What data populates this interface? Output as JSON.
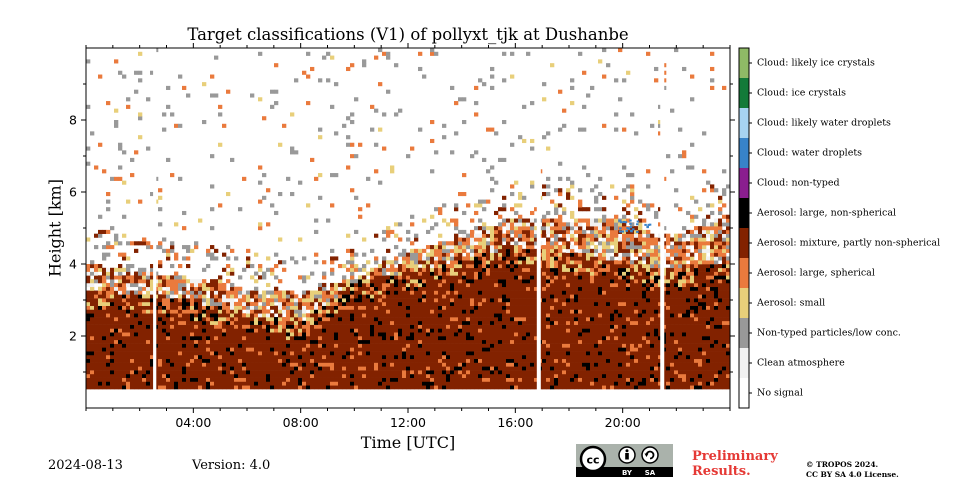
{
  "footer": {
    "date": "2024-08-13",
    "version": "Version: 4.0",
    "preliminary_line1": "Preliminary",
    "preliminary_line2": "Results.",
    "copyright_line1": "© TROPOS 2024.",
    "copyright_line2": "CC BY SA 4.0 License.",
    "license_badge": {
      "cc": "cc",
      "by": "BY",
      "sa": "SA"
    }
  },
  "colors": {
    "no_signal": "#ffffff",
    "clean_atmosphere": "#f2f2f2",
    "non_typed_low_conc": "#999999",
    "aerosol_small": "#e8cf7a",
    "aerosol_large_spherical": "#ea7a3d",
    "aerosol_mixture": "#822200",
    "aerosol_large_nonspherical": "#000000",
    "cloud_non_typed": "#8a1e8f",
    "cloud_water_droplets": "#3883c9",
    "cloud_likely_water_droplets": "#a7d3f2",
    "cloud_ice_crystals": "#137a39",
    "cloud_likely_ice_crystals": "#8fba66",
    "accent_red": "#e53935"
  },
  "chart_data": {
    "type": "heatmap",
    "title": "Target classifications (V1) of pollyxt_tjk at Dushanbe",
    "xlabel": "Time [UTC]",
    "ylabel": "Height [km]",
    "xlim_hours": [
      0,
      24
    ],
    "ylim_km": [
      0,
      10
    ],
    "x_ticks": [
      {
        "hour": 4,
        "label": "04:00"
      },
      {
        "hour": 8,
        "label": "08:00"
      },
      {
        "hour": 12,
        "label": "12:00"
      },
      {
        "hour": 16,
        "label": "16:00"
      },
      {
        "hour": 20,
        "label": "20:00"
      }
    ],
    "y_ticks": [
      {
        "km": 2,
        "label": "2"
      },
      {
        "km": 4,
        "label": "4"
      },
      {
        "km": 6,
        "label": "6"
      },
      {
        "km": 8,
        "label": "8"
      }
    ],
    "lowest_height_km": 0.5,
    "data_gaps_hours": [
      [
        2.5,
        2.62
      ],
      [
        16.8,
        16.95
      ],
      [
        21.4,
        21.55
      ]
    ],
    "mixture_layer_top_km": [
      [
        0,
        2.9
      ],
      [
        2,
        2.9
      ],
      [
        3,
        2.8
      ],
      [
        5,
        2.5
      ],
      [
        7,
        2.2
      ],
      [
        8,
        2.1
      ],
      [
        9,
        2.6
      ],
      [
        10,
        3.2
      ],
      [
        12,
        3.5
      ],
      [
        14,
        3.8
      ],
      [
        16,
        4.2
      ],
      [
        18,
        4.0
      ],
      [
        20,
        3.8
      ],
      [
        22,
        3.5
      ],
      [
        24,
        3.8
      ]
    ],
    "aerosol_layer_top_km": [
      [
        0,
        4.0
      ],
      [
        2,
        3.8
      ],
      [
        4,
        3.6
      ],
      [
        6,
        3.3
      ],
      [
        8,
        3.2
      ],
      [
        10,
        3.6
      ],
      [
        12,
        4.3
      ],
      [
        14,
        4.8
      ],
      [
        16,
        5.3
      ],
      [
        18,
        5.2
      ],
      [
        20,
        5.3
      ],
      [
        21,
        4.9
      ],
      [
        22,
        4.8
      ],
      [
        24,
        5.4
      ]
    ],
    "legend": [
      {
        "label": "Cloud: likely ice crystals",
        "color_key": "cloud_likely_ice_crystals"
      },
      {
        "label": "Cloud: ice crystals",
        "color_key": "cloud_ice_crystals"
      },
      {
        "label": "Cloud: likely water droplets",
        "color_key": "cloud_likely_water_droplets"
      },
      {
        "label": "Cloud: water droplets",
        "color_key": "cloud_water_droplets"
      },
      {
        "label": "Cloud: non-typed",
        "color_key": "cloud_non_typed"
      },
      {
        "label": "Aerosol: large, non-spherical",
        "color_key": "aerosol_large_nonspherical"
      },
      {
        "label": "Aerosol: mixture, partly non-spherical",
        "color_key": "aerosol_mixture"
      },
      {
        "label": "Aerosol: large, spherical",
        "color_key": "aerosol_large_spherical"
      },
      {
        "label": "Aerosol: small",
        "color_key": "aerosol_small"
      },
      {
        "label": "Non-typed particles/low conc.",
        "color_key": "non_typed_low_conc"
      },
      {
        "label": "Clean atmosphere",
        "color_key": "clean_atmosphere"
      },
      {
        "label": "No signal",
        "color_key": "no_signal"
      }
    ],
    "legend_placement": "right-colorbar",
    "grid": false
  }
}
